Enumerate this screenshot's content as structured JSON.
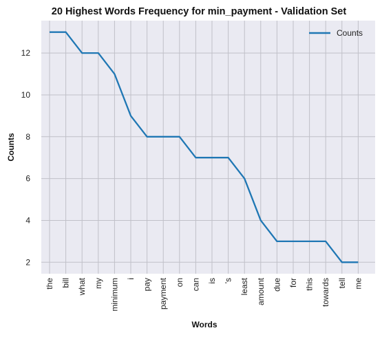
{
  "chart_data": {
    "type": "line",
    "title": "20 Highest Words Frequency for min_payment - Validation Set",
    "xlabel": "Words",
    "ylabel": "Counts",
    "categories": [
      "the",
      "bill",
      "what",
      "my",
      "minimum",
      "i",
      "pay",
      "payment",
      "on",
      "can",
      "is",
      "'s",
      "least",
      "amount",
      "due",
      "for",
      "this",
      "towards",
      "tell",
      "me"
    ],
    "series": [
      {
        "name": "Counts",
        "values": [
          13,
          13,
          12,
          12,
          11,
          9,
          8,
          8,
          8,
          7,
          7,
          7,
          6,
          4,
          3,
          3,
          3,
          3,
          2,
          2
        ],
        "color": "#1f77b4"
      }
    ],
    "ylim": [
      1.45,
      13.55
    ],
    "yticks": [
      2,
      4,
      6,
      8,
      10,
      12
    ],
    "grid": true,
    "legend_position": "top-right",
    "background": "#eaeaf2",
    "grid_color": "#c0c0c8"
  }
}
